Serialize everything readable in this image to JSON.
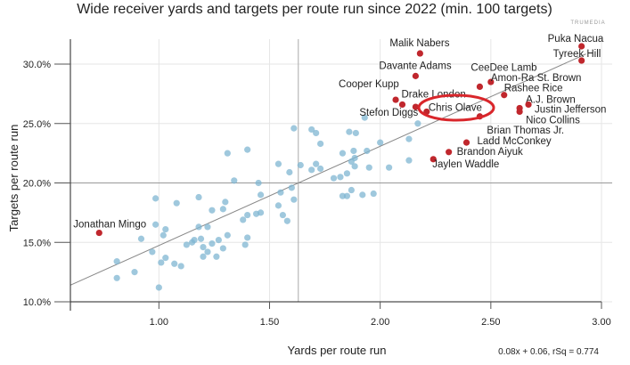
{
  "chart_data": {
    "type": "scatter",
    "title": "Wide receiver yards and targets per route run since 2022 (min. 100 targets)",
    "xlabel": "Yards per route run",
    "ylabel": "Targets per route run",
    "xlim": [
      0.6,
      3.0
    ],
    "ylim": [
      10.0,
      32.1
    ],
    "x_ticks": [
      "1.00",
      "1.50",
      "2.00",
      "2.50",
      "3.00"
    ],
    "x_tick_values": [
      1.0,
      1.5,
      2.0,
      2.5,
      3.0
    ],
    "y_ticks": [
      "10.0%",
      "15.0%",
      "20.0%",
      "25.0%",
      "30.0%"
    ],
    "y_tick_values": [
      10,
      15,
      20,
      25,
      30
    ],
    "grid": true,
    "reference_lines": {
      "x": 1.63,
      "y": 20.0
    },
    "trendline": {
      "label": "0.08x + 0.06, rSq = 0.774"
    },
    "highlight": "Chris Olave",
    "colors": {
      "other": "#7fb6d1",
      "labeled": "#c0272d",
      "highlight_ring": "#d9262b",
      "trend": "#888888"
    },
    "logo": "TRUMEDIA",
    "labeled_points": [
      {
        "name": "Malik Nabers",
        "x": 2.18,
        "y": 30.9
      },
      {
        "name": "Davante Adams",
        "x": 2.16,
        "y": 29.0
      },
      {
        "name": "CeeDee Lamb",
        "x": 2.45,
        "y": 28.1
      },
      {
        "name": "Amon-Ra St. Brown",
        "x": 2.5,
        "y": 28.5
      },
      {
        "name": "Rashee Rice",
        "x": 2.56,
        "y": 27.4
      },
      {
        "name": "A.J. Brown",
        "x": 2.63,
        "y": 26.3
      },
      {
        "name": "Justin Jefferson",
        "x": 2.67,
        "y": 26.6
      },
      {
        "name": "Nico Collins",
        "x": 2.63,
        "y": 26.0
      },
      {
        "name": "Puka Nacua",
        "x": 2.91,
        "y": 31.5
      },
      {
        "name": "Tyreek Hill",
        "x": 2.91,
        "y": 30.3
      },
      {
        "name": "Cooper Kupp",
        "x": 2.07,
        "y": 27.0
      },
      {
        "name": "Drake London",
        "x": 2.1,
        "y": 26.6
      },
      {
        "name": "Stefon Diggs",
        "x": 2.16,
        "y": 26.4
      },
      {
        "name": "Chris Olave",
        "x": 2.21,
        "y": 26.0
      },
      {
        "name": "Brian Thomas Jr.",
        "x": 2.45,
        "y": 25.6
      },
      {
        "name": "Ladd McConkey",
        "x": 2.39,
        "y": 23.4
      },
      {
        "name": "Brandon Aiyuk",
        "x": 2.31,
        "y": 22.6
      },
      {
        "name": "Jaylen Waddle",
        "x": 2.24,
        "y": 22.0
      },
      {
        "name": "Jonathan Mingo",
        "x": 0.73,
        "y": 15.8
      }
    ],
    "other_points": [
      [
        0.81,
        13.4
      ],
      [
        0.81,
        12.0
      ],
      [
        0.89,
        12.5
      ],
      [
        0.92,
        15.3
      ],
      [
        0.97,
        14.2
      ],
      [
        0.985,
        18.7
      ],
      [
        0.985,
        16.5
      ],
      [
        1.0,
        11.2
      ],
      [
        1.01,
        13.3
      ],
      [
        1.02,
        15.6
      ],
      [
        1.03,
        16.1
      ],
      [
        1.03,
        13.7
      ],
      [
        1.07,
        13.2
      ],
      [
        1.08,
        18.3
      ],
      [
        1.1,
        13.0
      ],
      [
        1.125,
        14.8
      ],
      [
        1.15,
        15.0
      ],
      [
        1.16,
        15.2
      ],
      [
        1.18,
        18.8
      ],
      [
        1.18,
        16.3
      ],
      [
        1.19,
        15.3
      ],
      [
        1.2,
        14.6
      ],
      [
        1.2,
        13.8
      ],
      [
        1.22,
        16.3
      ],
      [
        1.22,
        14.2
      ],
      [
        1.24,
        14.9
      ],
      [
        1.24,
        17.7
      ],
      [
        1.26,
        13.8
      ],
      [
        1.27,
        15.2
      ],
      [
        1.29,
        17.8
      ],
      [
        1.29,
        14.5
      ],
      [
        1.3,
        18.4
      ],
      [
        1.31,
        22.5
      ],
      [
        1.31,
        15.6
      ],
      [
        1.34,
        20.2
      ],
      [
        1.38,
        16.9
      ],
      [
        1.39,
        14.8
      ],
      [
        1.4,
        22.8
      ],
      [
        1.4,
        17.3
      ],
      [
        1.4,
        15.4
      ],
      [
        1.44,
        17.4
      ],
      [
        1.45,
        20.0
      ],
      [
        1.46,
        19.0
      ],
      [
        1.46,
        17.5
      ],
      [
        1.54,
        21.6
      ],
      [
        1.54,
        18.1
      ],
      [
        1.55,
        19.2
      ],
      [
        1.56,
        17.3
      ],
      [
        1.58,
        16.8
      ],
      [
        1.59,
        20.9
      ],
      [
        1.6,
        19.6
      ],
      [
        1.61,
        18.6
      ],
      [
        1.61,
        24.6
      ],
      [
        1.64,
        21.5
      ],
      [
        1.69,
        24.5
      ],
      [
        1.69,
        21.1
      ],
      [
        1.71,
        24.2
      ],
      [
        1.71,
        21.6
      ],
      [
        1.73,
        23.3
      ],
      [
        1.73,
        21.2
      ],
      [
        1.79,
        20.4
      ],
      [
        1.82,
        20.5
      ],
      [
        1.83,
        18.9
      ],
      [
        1.83,
        22.5
      ],
      [
        1.85,
        20.8
      ],
      [
        1.85,
        18.9
      ],
      [
        1.86,
        24.3
      ],
      [
        1.87,
        19.4
      ],
      [
        1.87,
        21.8
      ],
      [
        1.88,
        22.7
      ],
      [
        1.885,
        22.1
      ],
      [
        1.885,
        21.4
      ],
      [
        1.89,
        24.2
      ],
      [
        1.92,
        19.0
      ],
      [
        1.93,
        25.5
      ],
      [
        1.94,
        22.7
      ],
      [
        1.95,
        21.3
      ],
      [
        1.97,
        19.1
      ],
      [
        2.0,
        23.4
      ],
      [
        2.04,
        21.3
      ],
      [
        2.13,
        21.9
      ],
      [
        2.13,
        23.7
      ],
      [
        2.17,
        25.0
      ]
    ]
  }
}
